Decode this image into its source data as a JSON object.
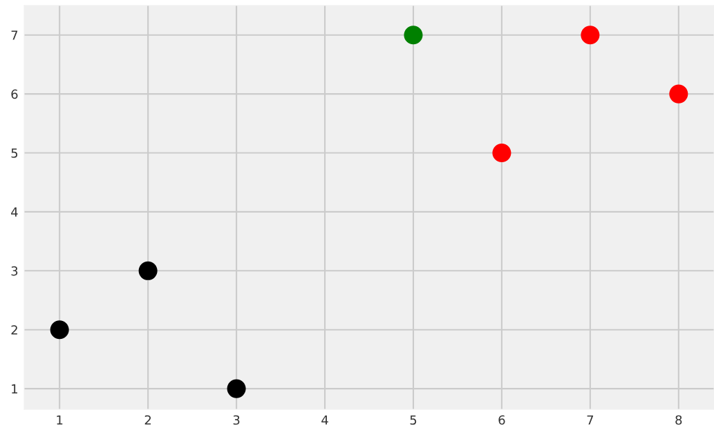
{
  "chart_data": {
    "type": "scatter",
    "x": [
      1,
      2,
      3,
      5,
      6,
      7,
      8
    ],
    "values": [
      2,
      3,
      1,
      7,
      5,
      7,
      6
    ],
    "colors": [
      "#000000",
      "#000000",
      "#000000",
      "#008000",
      "#ff0000",
      "#ff0000",
      "#ff0000"
    ],
    "marker": "circle",
    "xlim": [
      0.6,
      8.4
    ],
    "ylim": [
      0.65,
      7.5
    ],
    "xticks": [
      1,
      2,
      3,
      4,
      5,
      6,
      7,
      8
    ],
    "yticks": [
      1,
      2,
      3,
      4,
      5,
      6,
      7
    ],
    "grid": true
  }
}
